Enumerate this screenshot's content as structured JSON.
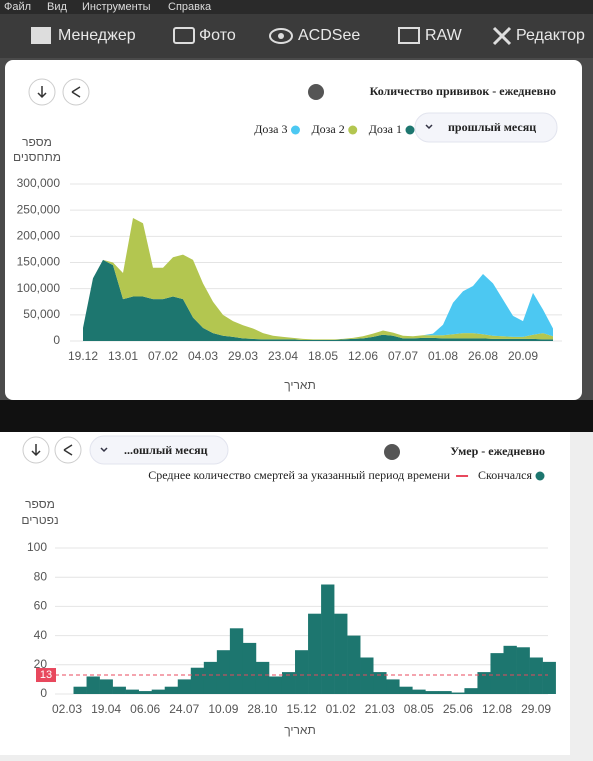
{
  "menu": [
    "Файл",
    "Вид",
    "Инструменты",
    "Справка"
  ],
  "toolbar": [
    "Менеджер",
    "Фото",
    "ACDSee",
    "RAW",
    "Редактор"
  ],
  "chart_data": [
    {
      "type": "area",
      "stacked": true,
      "title": "Количество прививок - ежедневно",
      "y_label": [
        "מספר",
        "מתחסנים"
      ],
      "x_label": "תאריך",
      "period": "прошлый месяц",
      "grid": true,
      "categories": [
        "19.12",
        null,
        null,
        null,
        "13.01",
        null,
        null,
        null,
        "07.02",
        null,
        null,
        null,
        "04.03",
        null,
        null,
        null,
        "29.03",
        null,
        null,
        null,
        "23.04",
        null,
        null,
        null,
        "18.05",
        null,
        null,
        null,
        "12.06",
        null,
        null,
        null,
        "07.07",
        null,
        null,
        null,
        "01.08",
        null,
        null,
        null,
        "26.08",
        null,
        null,
        null,
        "20.09",
        null,
        null,
        null
      ],
      "series": [
        {
          "name": "Доза 1",
          "color": "#1d766f",
          "values": [
            25000,
            120000,
            155000,
            145000,
            80000,
            85000,
            85000,
            80000,
            80000,
            85000,
            80000,
            45000,
            25000,
            15000,
            10000,
            8000,
            5000,
            4000,
            3000,
            3000,
            3000,
            3000,
            2000,
            2000,
            2000,
            2000,
            3000,
            4000,
            5000,
            8000,
            12000,
            10000,
            5000,
            5000,
            6000,
            6000,
            5000,
            5000,
            5000,
            5000,
            5000,
            4000,
            4000,
            4000,
            4000,
            4000,
            3000,
            3000
          ]
        },
        {
          "name": "Доза 2",
          "color": "#b3c650",
          "values": [
            0,
            0,
            0,
            5000,
            50000,
            150000,
            140000,
            60000,
            60000,
            75000,
            85000,
            110000,
            85000,
            60000,
            40000,
            30000,
            25000,
            20000,
            12000,
            7000,
            5000,
            3000,
            2000,
            1000,
            1000,
            1000,
            1000,
            2000,
            4000,
            6000,
            8000,
            6000,
            5000,
            4000,
            5000,
            5000,
            6000,
            8000,
            10000,
            10000,
            8000,
            6000,
            5000,
            4000,
            4000,
            8000,
            12000,
            6000
          ]
        },
        {
          "name": "Доза 3",
          "color": "#4cc8f2",
          "values": [
            0,
            0,
            0,
            0,
            0,
            0,
            0,
            0,
            0,
            0,
            0,
            0,
            0,
            0,
            0,
            0,
            0,
            0,
            0,
            0,
            0,
            0,
            0,
            0,
            0,
            0,
            0,
            0,
            0,
            0,
            0,
            0,
            0,
            0,
            0,
            3000,
            20000,
            60000,
            80000,
            90000,
            115000,
            100000,
            70000,
            40000,
            30000,
            80000,
            45000,
            15000
          ]
        }
      ],
      "ylim": [
        0,
        320000
      ],
      "yticks": [
        0,
        {
          "value": 50000,
          "label": "50,000"
        },
        {
          "value": 100000,
          "label": "100,000"
        },
        {
          "value": 150000,
          "label": "150,000"
        },
        {
          "value": 200000,
          "label": "200,000"
        },
        {
          "value": 250000,
          "label": "250,000"
        },
        {
          "value": 300000,
          "label": "300,000"
        }
      ]
    },
    {
      "type": "bar",
      "title": "Умер - ежедневно",
      "y_label": [
        "מספר",
        "נפטרים"
      ],
      "x_label": "תאריך",
      "period": "...ошлый месяц",
      "grid": true,
      "categories": [
        "02.03",
        null,
        null,
        "19.04",
        null,
        null,
        "06.06",
        null,
        null,
        "24.07",
        null,
        null,
        "10.09",
        null,
        null,
        "28.10",
        null,
        null,
        "15.12",
        null,
        null,
        "01.02",
        null,
        null,
        "21.03",
        null,
        null,
        "08.05",
        null,
        null,
        "25.06",
        null,
        null,
        "12.08",
        null,
        null,
        "29.09",
        null
      ],
      "series": [
        {
          "name": "Скончался",
          "color": "#1d766f",
          "values": [
            0,
            5,
            12,
            10,
            5,
            3,
            2,
            3,
            5,
            10,
            18,
            22,
            30,
            45,
            35,
            22,
            12,
            15,
            30,
            55,
            75,
            55,
            40,
            25,
            15,
            10,
            5,
            3,
            2,
            2,
            1,
            4,
            15,
            28,
            33,
            32,
            25,
            22
          ]
        }
      ],
      "reference_line": {
        "name": "Среднее количество смертей за указанный период времени",
        "value": 13,
        "color": "#e8485d"
      },
      "ylim": [
        0,
        110
      ],
      "yticks": [
        0,
        20,
        40,
        60,
        80,
        100
      ]
    }
  ]
}
